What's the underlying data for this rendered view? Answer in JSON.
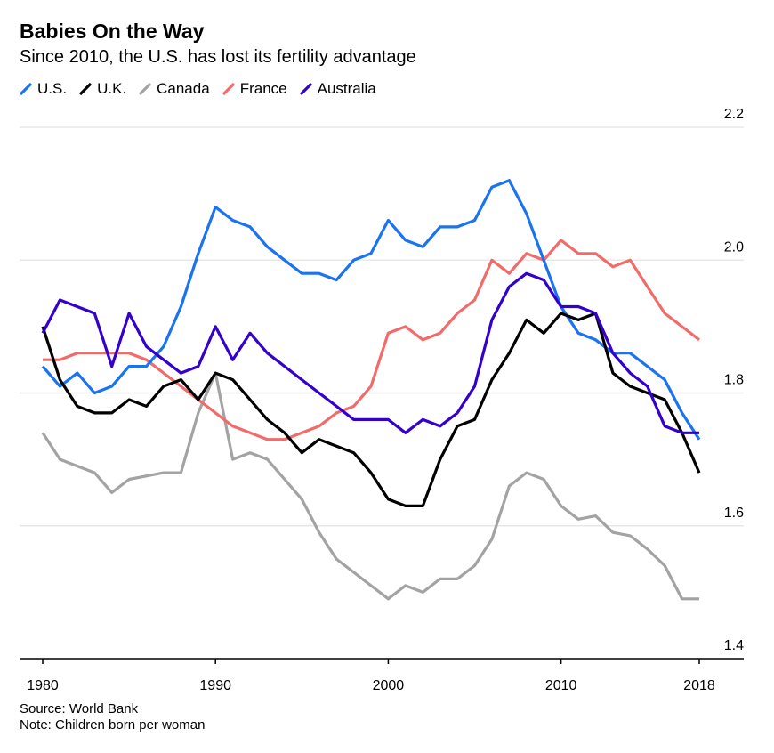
{
  "chart_data": {
    "type": "line",
    "title": "Babies On the Way",
    "subtitle": "Since 2010, the U.S. has lost its fertility advantage",
    "xlabel": "",
    "ylabel": "",
    "ylim": [
      1.4,
      2.2
    ],
    "xlim": [
      1980,
      2018
    ],
    "yticks": [
      "1.4",
      "1.6",
      "1.8",
      "2.0",
      "2.2"
    ],
    "xticks": [
      "1980",
      "1990",
      "2000",
      "2010",
      "2018"
    ],
    "grid": true,
    "legend_placement": "top-left",
    "x_start": 1980,
    "series": [
      {
        "name": "U.S.",
        "color": "#1a73f0",
        "values": [
          1.84,
          1.81,
          1.83,
          1.8,
          1.81,
          1.84,
          1.84,
          1.87,
          1.93,
          2.01,
          2.08,
          2.06,
          2.05,
          2.02,
          2.0,
          1.98,
          1.98,
          1.97,
          2.0,
          2.01,
          2.06,
          2.03,
          2.02,
          2.05,
          2.05,
          2.06,
          2.11,
          2.12,
          2.07,
          2.0,
          1.93,
          1.89,
          1.88,
          1.86,
          1.86,
          1.84,
          1.82,
          1.77,
          1.73
        ]
      },
      {
        "name": "U.K.",
        "color": "#000000",
        "values": [
          1.9,
          1.82,
          1.78,
          1.77,
          1.77,
          1.79,
          1.78,
          1.81,
          1.82,
          1.79,
          1.83,
          1.82,
          1.79,
          1.76,
          1.74,
          1.71,
          1.73,
          1.72,
          1.71,
          1.68,
          1.64,
          1.63,
          1.63,
          1.7,
          1.75,
          1.76,
          1.82,
          1.86,
          1.91,
          1.89,
          1.92,
          1.91,
          1.92,
          1.83,
          1.81,
          1.8,
          1.79,
          1.74,
          1.68
        ]
      },
      {
        "name": "Canada",
        "color": "#a3a3a3",
        "values": [
          1.74,
          1.7,
          1.69,
          1.68,
          1.65,
          1.67,
          1.675,
          1.68,
          1.68,
          1.77,
          1.83,
          1.7,
          1.71,
          1.7,
          1.67,
          1.64,
          1.59,
          1.55,
          1.53,
          1.51,
          1.49,
          1.51,
          1.5,
          1.52,
          1.52,
          1.54,
          1.58,
          1.66,
          1.68,
          1.67,
          1.63,
          1.61,
          1.615,
          1.59,
          1.585,
          1.565,
          1.54,
          1.49,
          1.49
        ]
      },
      {
        "name": "France",
        "color": "#f26b6b",
        "values": [
          1.85,
          1.85,
          1.86,
          1.86,
          1.86,
          1.86,
          1.85,
          1.83,
          1.81,
          1.79,
          1.77,
          1.75,
          1.74,
          1.73,
          1.73,
          1.74,
          1.75,
          1.77,
          1.78,
          1.81,
          1.89,
          1.9,
          1.88,
          1.89,
          1.92,
          1.94,
          2.0,
          1.98,
          2.01,
          2.0,
          2.03,
          2.01,
          2.01,
          1.99,
          2.0,
          1.96,
          1.92,
          1.9,
          1.88
        ]
      },
      {
        "name": "Australia",
        "color": "#3300cc",
        "values": [
          1.89,
          1.94,
          1.93,
          1.92,
          1.84,
          1.92,
          1.87,
          1.85,
          1.83,
          1.84,
          1.9,
          1.85,
          1.89,
          1.86,
          1.84,
          1.82,
          1.8,
          1.78,
          1.76,
          1.76,
          1.76,
          1.74,
          1.76,
          1.75,
          1.77,
          1.81,
          1.91,
          1.96,
          1.98,
          1.97,
          1.93,
          1.93,
          1.92,
          1.86,
          1.83,
          1.81,
          1.75,
          1.74,
          1.74
        ]
      }
    ]
  },
  "footer": {
    "source": "Source: World Bank",
    "note": "Note: Children born per woman"
  }
}
